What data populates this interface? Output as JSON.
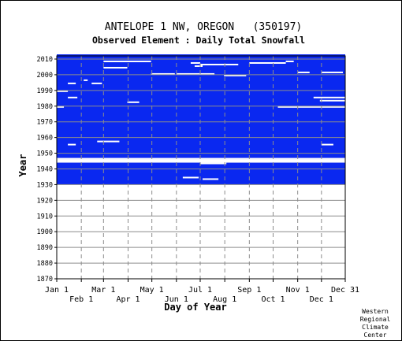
{
  "chart_data": {
    "type": "heatmap",
    "title": "ANTELOPE 1 NW, OREGON   (350197)",
    "subtitle": "Observed Element : Daily Total Snowfall",
    "xlabel": "Day of Year",
    "ylabel": "Year",
    "x_range_day_of_year": [
      1,
      365
    ],
    "ylim": [
      1870,
      2012
    ],
    "x_ticks_top_row": [
      {
        "label": "Jan 1",
        "day": 1
      },
      {
        "label": "Mar 1",
        "day": 60
      },
      {
        "label": "May 1",
        "day": 121
      },
      {
        "label": "Jul 1",
        "day": 182
      },
      {
        "label": "Sep 1",
        "day": 244
      },
      {
        "label": "Nov 1",
        "day": 305
      },
      {
        "label": "Dec 31",
        "day": 365
      }
    ],
    "x_ticks_bottom_row": [
      {
        "label": "Feb 1",
        "day": 32
      },
      {
        "label": "Apr 1",
        "day": 91
      },
      {
        "label": "Jun 1",
        "day": 152
      },
      {
        "label": "Aug 1",
        "day": 213
      },
      {
        "label": "Oct 1",
        "day": 274
      },
      {
        "label": "Dec 1",
        "day": 335
      }
    ],
    "y_ticks": [
      1870,
      1880,
      1890,
      1900,
      1910,
      1920,
      1930,
      1940,
      1950,
      1960,
      1970,
      1980,
      1990,
      2000,
      2010
    ],
    "grid": true,
    "legend": "none",
    "data_coverage": {
      "description": "blue = day with observation; white = missing",
      "record_years": [
        1930,
        2012
      ],
      "missing_full_years": [
        1944,
        1945
      ],
      "missing_segments": [
        {
          "year": 1946,
          "start_day": 1,
          "end_day": 365
        },
        {
          "year": 1944,
          "start_day": 182,
          "end_day": 270
        },
        {
          "year": 1943,
          "start_day": 182,
          "end_day": 215
        },
        {
          "year": 1934,
          "start_day": 160,
          "end_day": 180
        },
        {
          "year": 1933,
          "start_day": 185,
          "end_day": 205
        },
        {
          "year": 1955,
          "start_day": 15,
          "end_day": 25
        },
        {
          "year": 1955,
          "start_day": 335,
          "end_day": 350
        },
        {
          "year": 1957,
          "start_day": 52,
          "end_day": 80
        },
        {
          "year": 1979,
          "start_day": 1,
          "end_day": 10
        },
        {
          "year": 1979,
          "start_day": 280,
          "end_day": 365
        },
        {
          "year": 1982,
          "start_day": 90,
          "end_day": 105
        },
        {
          "year": 1983,
          "start_day": 333,
          "end_day": 365
        },
        {
          "year": 1985,
          "start_day": 15,
          "end_day": 27
        },
        {
          "year": 1985,
          "start_day": 325,
          "end_day": 365
        },
        {
          "year": 1989,
          "start_day": 1,
          "end_day": 15
        },
        {
          "year": 1994,
          "start_day": 15,
          "end_day": 25
        },
        {
          "year": 1994,
          "start_day": 45,
          "end_day": 58
        },
        {
          "year": 1996,
          "start_day": 35,
          "end_day": 40
        },
        {
          "year": 1999,
          "start_day": 212,
          "end_day": 240
        },
        {
          "year": 2000,
          "start_day": 120,
          "end_day": 150
        },
        {
          "year": 2000,
          "start_day": 152,
          "end_day": 200
        },
        {
          "year": 2001,
          "start_day": 305,
          "end_day": 320
        },
        {
          "year": 2001,
          "start_day": 335,
          "end_day": 362
        },
        {
          "year": 2004,
          "start_day": 60,
          "end_day": 90
        },
        {
          "year": 2005,
          "start_day": 175,
          "end_day": 185
        },
        {
          "year": 2006,
          "start_day": 182,
          "end_day": 230
        },
        {
          "year": 2007,
          "start_day": 244,
          "end_day": 290
        },
        {
          "year": 2007,
          "start_day": 170,
          "end_day": 182
        },
        {
          "year": 2008,
          "start_day": 60,
          "end_day": 120
        },
        {
          "year": 2008,
          "start_day": 290,
          "end_day": 300
        }
      ]
    },
    "colors": {
      "observed": "#0a28f0",
      "missing": "#ffffff",
      "grid": "#8c8c8c",
      "frame": "#000000"
    }
  },
  "footer": {
    "credit_lines": [
      "Western",
      "Regional",
      "Climate",
      "Center"
    ]
  }
}
